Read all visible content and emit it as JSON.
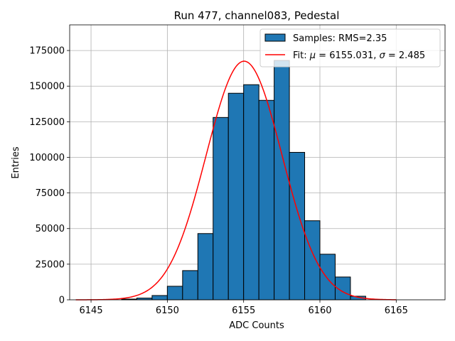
{
  "chart_data": {
    "type": "bar",
    "title": "Run 477, channel083, Pedestal",
    "xlabel": "ADC Counts",
    "ylabel": "Entries",
    "xlim": [
      6143.6,
      6168.2
    ],
    "ylim": [
      0,
      193000
    ],
    "xticks": [
      6145,
      6150,
      6155,
      6160,
      6165
    ],
    "yticks": [
      0,
      25000,
      50000,
      75000,
      100000,
      125000,
      150000,
      175000
    ],
    "grid": true,
    "legend_position": "upper right",
    "bar_color": "#1f77b4",
    "bar_edge_color": "#000000",
    "fit_color": "#ff0000",
    "histogram": {
      "name": "Samples: RMS=2.35",
      "bin_edges": [
        6147,
        6148,
        6149,
        6150,
        6151,
        6152,
        6153,
        6154,
        6155,
        6156,
        6157,
        6158,
        6159,
        6160,
        6161,
        6162,
        6163
      ],
      "counts": [
        500,
        1200,
        3000,
        9500,
        20500,
        46500,
        128000,
        145000,
        151000,
        140000,
        168000,
        103500,
        55500,
        32000,
        16000,
        2500
      ]
    },
    "fit": {
      "name": "Fit: μ = 6155.031, σ = 2.485",
      "name_prefix": "Fit: ",
      "mu_symbol": "μ",
      "mu_value": " = 6155.031, ",
      "sigma_symbol": "σ",
      "sigma_value": " = 2.485",
      "mu": 6155.031,
      "sigma": 2.485,
      "amplitude": 167500,
      "x_range": [
        6144,
        6165
      ]
    }
  }
}
